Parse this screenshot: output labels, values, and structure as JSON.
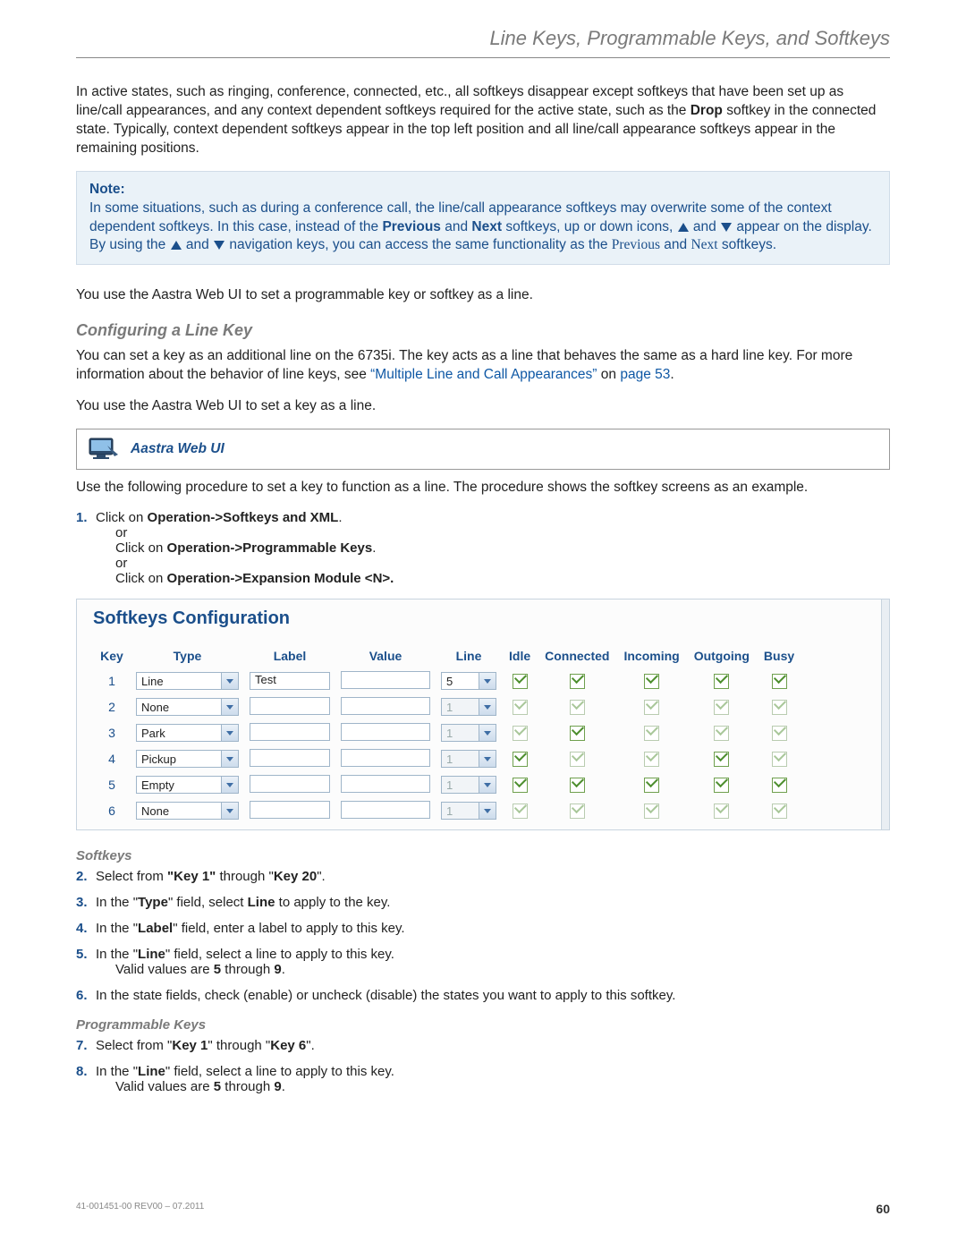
{
  "header": {
    "title": "Line Keys, Programmable Keys, and Softkeys"
  },
  "p_intro": "In active states, such as ringing, conference, connected, etc., all softkeys disappear except softkeys that have been set up as line/call appearances, and any context dependent softkeys required for the active state, such as the ",
  "p_intro_bold": "Drop",
  "p_intro_cont": " softkey in the connected state. Typically, context dependent softkeys appear in the top left position and all line/call appearance softkeys appear in the remaining positions.",
  "note": {
    "title": "Note:",
    "l1a": "In some situations, such as during a conference call, the line/call appearance softkeys may overwrite some of the context dependent softkeys. In this case, instead of the ",
    "b_prev": "Previous",
    "l1b": " and ",
    "b_next": "Next",
    "l1c": " softkeys, up or down icons, ",
    "l1d": " and ",
    "l1e": " appear on the display. By using the ",
    "l1f": " and ",
    "l1g": " navigation keys, you can access the same functionality as the ",
    "serif_prev": "Previous",
    "l1h": " and ",
    "serif_next": "Next",
    "l1i": " softkeys."
  },
  "p_use": "You use the Aastra Web UI to set a programmable key or softkey as a line.",
  "section": {
    "title": "Configuring a Line Key"
  },
  "p_conf1a": "You can set a key as an additional line on the 6735i. The key acts as a line that behaves the same as a hard line key. For more information about the behavior of line keys, see ",
  "link_multi": "“Multiple Line and Call Appearances”",
  "p_conf1b": " on ",
  "link_page": "page 53",
  "p_conf1c": ".",
  "p_conf2": "You use the Aastra Web UI to set a key as a line.",
  "webui": {
    "label": "Aastra Web UI"
  },
  "p_proc": "Use the following procedure to set a key to function as a line. The procedure shows the softkey screens as an example.",
  "step1": {
    "a": "Click on ",
    "ab": "Operation->Softkeys and XML",
    "ac": ".",
    "or1": "or",
    "b": "Click on ",
    "bb": "Operation->Programmable Keys",
    "bc": ".",
    "or2": "or",
    "c": "Click on ",
    "cb": "Operation->Expansion Module <N>."
  },
  "config": {
    "title": "Softkeys Configuration",
    "headers": [
      "Key",
      "Type",
      "Label",
      "Value",
      "Line",
      "Idle",
      "Connected",
      "Incoming",
      "Outgoing",
      "Busy"
    ],
    "rows": [
      {
        "key": "1",
        "type": "Line",
        "type_enabled": true,
        "label": "Test",
        "line": "5",
        "line_enabled": true,
        "states": [
          {
            "c": true,
            "e": true
          },
          {
            "c": true,
            "e": true
          },
          {
            "c": true,
            "e": true
          },
          {
            "c": true,
            "e": true
          },
          {
            "c": true,
            "e": true
          }
        ]
      },
      {
        "key": "2",
        "type": "None",
        "type_enabled": true,
        "label": "",
        "line": "1",
        "line_enabled": false,
        "states": [
          {
            "c": true,
            "e": false
          },
          {
            "c": true,
            "e": false
          },
          {
            "c": true,
            "e": false
          },
          {
            "c": true,
            "e": false
          },
          {
            "c": true,
            "e": false
          }
        ]
      },
      {
        "key": "3",
        "type": "Park",
        "type_enabled": true,
        "label": "",
        "line": "1",
        "line_enabled": false,
        "states": [
          {
            "c": true,
            "e": false
          },
          {
            "c": true,
            "e": true
          },
          {
            "c": true,
            "e": false
          },
          {
            "c": true,
            "e": false
          },
          {
            "c": true,
            "e": false
          }
        ]
      },
      {
        "key": "4",
        "type": "Pickup",
        "type_enabled": true,
        "label": "",
        "line": "1",
        "line_enabled": false,
        "states": [
          {
            "c": true,
            "e": true
          },
          {
            "c": true,
            "e": false
          },
          {
            "c": true,
            "e": false
          },
          {
            "c": true,
            "e": true
          },
          {
            "c": true,
            "e": false
          }
        ]
      },
      {
        "key": "5",
        "type": "Empty",
        "type_enabled": true,
        "label": "",
        "line": "1",
        "line_enabled": false,
        "states": [
          {
            "c": true,
            "e": true
          },
          {
            "c": true,
            "e": true
          },
          {
            "c": true,
            "e": true
          },
          {
            "c": true,
            "e": true
          },
          {
            "c": true,
            "e": true
          }
        ]
      },
      {
        "key": "6",
        "type": "None",
        "type_enabled": true,
        "label": "",
        "line": "1",
        "line_enabled": false,
        "states": [
          {
            "c": true,
            "e": false
          },
          {
            "c": true,
            "e": false
          },
          {
            "c": true,
            "e": false
          },
          {
            "c": true,
            "e": false
          },
          {
            "c": true,
            "e": false
          }
        ]
      }
    ]
  },
  "softkeys_h": "Softkeys",
  "step2": {
    "a": "Select from ",
    "b1": "\"Key 1\"",
    "b": " through \"",
    "b2": "Key 20",
    "c": "\"."
  },
  "step3": {
    "a": "In the \"",
    "b": "Type",
    "c": "\" field, select ",
    "d": "Line",
    "e": " to apply to the key."
  },
  "step4": {
    "a": "In the \"",
    "b": "Label",
    "c": "\" field, enter a label to apply to this key."
  },
  "step5": {
    "a": "In the \"",
    "b": "Line",
    "c": "\" field, select a line to apply to this key.",
    "d": "Valid values are ",
    "e": "5",
    "f": " through ",
    "g": "9",
    "h": "."
  },
  "step6": {
    "a": "In the state fields, check (enable) or uncheck (disable) the states you want to apply to this softkey."
  },
  "prog_h": "Programmable Keys",
  "step7": {
    "a": "Select from \"",
    "b": "Key 1",
    "c": "\" through \"",
    "d": "Key 6",
    "e": "\"."
  },
  "step8": {
    "a": "In the \"",
    "b": "Line",
    "c": "\" field, select a line to apply to this key.",
    "d": "Valid values are ",
    "e": "5",
    "f": " through ",
    "g": "9",
    "h": "."
  },
  "footer": {
    "rev": "41-001451-00 REV00 – 07.2011",
    "page": "60"
  }
}
